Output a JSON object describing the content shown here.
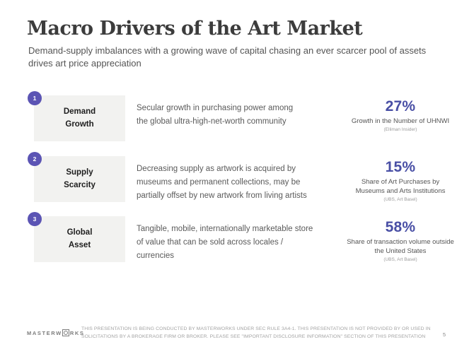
{
  "slide": {
    "title": "Macro Drivers of the Art Market",
    "subtitle": "Demand-supply imbalances with a growing wave of capital chasing an ever scarcer pool of assets\ndrives art price appreciation",
    "page_number": "5"
  },
  "rows": [
    {
      "number": "1",
      "label": "Demand\nGrowth",
      "description": "Secular growth in purchasing power among\nthe global ultra-high-net-worth community",
      "stat_value": "27%",
      "stat_label": "Growth in the Number of UHNWI",
      "stat_source": "(Elliman Insider)"
    },
    {
      "number": "2",
      "label": "Supply\nScarcity",
      "description": "Decreasing supply as artwork is acquired by\nmuseums and permanent collections, may be\npartially offset by new artwork from living artists",
      "stat_value": "15%",
      "stat_label": "Share of Art Purchases by\nMuseums and Arts Institutions",
      "stat_source": "(UBS, Art Basel)"
    },
    {
      "number": "3",
      "label": "Global\nAsset",
      "description": "Tangible, mobile, internationally marketable store\nof value that can be sold across locales /\ncurrencies",
      "stat_value": "58%",
      "stat_label": "Share of transaction volume outside\nthe United States",
      "stat_source": "(UBS, Art Basel)"
    }
  ],
  "footer": {
    "logo_prefix": "MASTERW",
    "logo_suffix": "RKS",
    "disclaimer": "THIS PRESENTATION  IS BEING CONDUCTED BY MASTERWORKS UNDER SEC RULE 3A4-1. THIS PRESENTATION  IS NOT PROVIDED BY OR USED IN SOLICITATIONS BY A BROKERAGE FIRM OR BROKER. PLEASE SEE \"IMPORTANT DISCLOSURE INFORMATION\" SECTION OF THIS PRESENTATION"
  },
  "colors": {
    "accent_purple": "#5b54b4",
    "stat_blue": "#494fa5",
    "box_gray": "#f2f2f0"
  }
}
